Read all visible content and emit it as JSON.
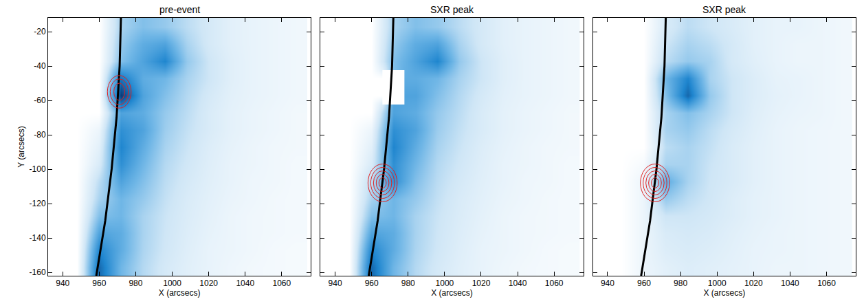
{
  "chart_data": [
    {
      "type": "heatmap",
      "title": "pre-event",
      "xlabel": "X (arcsecs)",
      "ylabel": "Y (arcsecs)",
      "xlim": [
        932,
        1076
      ],
      "ylim": [
        -162,
        -12
      ],
      "xticks": [
        940,
        960,
        980,
        1000,
        1020,
        1040,
        1060
      ],
      "yticks": [
        -160,
        -140,
        -120,
        -100,
        -80,
        -60,
        -40,
        -20
      ],
      "colors": [
        "#ffffff",
        "#cfe6f6",
        "#6fb6e6",
        "#1f86cf",
        "#0a3a78"
      ],
      "zlim": [
        0,
        1
      ],
      "x": [
        936,
        948,
        960,
        972,
        984,
        996,
        1008,
        1020,
        1032,
        1044,
        1056,
        1068
      ],
      "y": [
        -17,
        -27,
        -37,
        -47,
        -57,
        -67,
        -77,
        -87,
        -97,
        -107,
        -117,
        -127,
        -137,
        -147,
        -157
      ],
      "z": [
        [
          0,
          0,
          0,
          0.35,
          0.45,
          0.4,
          0.3,
          0.22,
          0.15,
          0.12,
          0.1,
          0.08
        ],
        [
          0,
          0,
          0,
          0.4,
          0.55,
          0.6,
          0.35,
          0.22,
          0.15,
          0.12,
          0.1,
          0.08
        ],
        [
          0,
          0,
          0,
          0.45,
          0.6,
          0.75,
          0.4,
          0.25,
          0.16,
          0.12,
          0.1,
          0.08
        ],
        [
          0,
          0,
          0,
          0.8,
          0.55,
          0.5,
          0.35,
          0.25,
          0.16,
          0.12,
          0.1,
          0.08
        ],
        [
          0,
          0,
          0,
          1.0,
          0.6,
          0.45,
          0.32,
          0.22,
          0.15,
          0.12,
          0.1,
          0.08
        ],
        [
          0,
          0,
          0,
          0.6,
          0.55,
          0.4,
          0.3,
          0.2,
          0.14,
          0.11,
          0.09,
          0.07
        ],
        [
          0,
          0,
          0.1,
          0.7,
          0.6,
          0.38,
          0.28,
          0.2,
          0.14,
          0.11,
          0.09,
          0.07
        ],
        [
          0,
          0,
          0.15,
          0.75,
          0.55,
          0.35,
          0.26,
          0.18,
          0.13,
          0.1,
          0.08,
          0.07
        ],
        [
          0,
          0,
          0.2,
          0.7,
          0.5,
          0.32,
          0.24,
          0.17,
          0.12,
          0.1,
          0.08,
          0.06
        ],
        [
          0,
          0,
          0.3,
          0.6,
          0.45,
          0.3,
          0.22,
          0.16,
          0.12,
          0.09,
          0.08,
          0.06
        ],
        [
          0,
          0,
          0.35,
          0.5,
          0.4,
          0.28,
          0.2,
          0.15,
          0.11,
          0.09,
          0.07,
          0.06
        ],
        [
          0,
          0,
          0.45,
          0.5,
          0.35,
          0.26,
          0.19,
          0.14,
          0.1,
          0.08,
          0.07,
          0.06
        ],
        [
          0,
          0,
          0.6,
          0.55,
          0.35,
          0.25,
          0.18,
          0.13,
          0.1,
          0.08,
          0.07,
          0.06
        ],
        [
          0,
          0,
          0.75,
          0.55,
          0.34,
          0.24,
          0.17,
          0.12,
          0.1,
          0.08,
          0.06,
          0.05
        ],
        [
          0,
          0,
          0.85,
          0.5,
          0.32,
          0.22,
          0.16,
          0.12,
          0.09,
          0.07,
          0.06,
          0.05
        ]
      ],
      "limb": {
        "color": "#000000",
        "x": [
          971.9,
          971.2,
          969.5,
          966.8,
          963.3,
          958.4
        ],
        "y": [
          -12,
          -40,
          -70,
          -100,
          -130,
          -162
        ]
      },
      "contours": {
        "color": "#e02020",
        "ellipses": [
          {
            "x": 971,
            "y": -55,
            "rx": [
              3,
              5,
              6.5
            ],
            "ry": [
              5,
              7.5,
              9.5
            ]
          }
        ]
      }
    },
    {
      "type": "heatmap",
      "title": "SXR peak",
      "xlabel": "X (arcsecs)",
      "tick_labels": "x",
      "xlim": [
        932,
        1076
      ],
      "ylim": [
        -162,
        -12
      ],
      "xticks": [
        940,
        960,
        980,
        1000,
        1020,
        1040,
        1060
      ],
      "yticks": [
        -160,
        -140,
        -120,
        -100,
        -80,
        -60,
        -40,
        -20
      ],
      "colors": [
        "#ffffff",
        "#cfe6f6",
        "#6fb6e6",
        "#1f86cf",
        "#0a3a78"
      ],
      "zlim": [
        0,
        1
      ],
      "x": [
        936,
        948,
        960,
        972,
        984,
        996,
        1008,
        1020,
        1032,
        1044,
        1056,
        1068
      ],
      "y": [
        -17,
        -27,
        -37,
        -47,
        -57,
        -67,
        -77,
        -87,
        -97,
        -107,
        -117,
        -127,
        -137,
        -147,
        -157
      ],
      "z": [
        [
          0,
          0,
          0,
          0.35,
          0.45,
          0.4,
          0.3,
          0.22,
          0.15,
          0.12,
          0.1,
          0.08
        ],
        [
          0,
          0,
          0,
          0.4,
          0.55,
          0.6,
          0.35,
          0.22,
          0.15,
          0.12,
          0.1,
          0.08
        ],
        [
          0,
          0,
          0,
          0.45,
          0.6,
          0.75,
          0.4,
          0.25,
          0.16,
          0.12,
          0.1,
          0.08
        ],
        [
          0,
          0,
          0,
          null,
          0.55,
          0.5,
          0.35,
          0.25,
          0.16,
          0.12,
          0.1,
          0.08
        ],
        [
          0,
          0,
          0,
          null,
          0.6,
          0.45,
          0.32,
          0.22,
          0.15,
          0.12,
          0.1,
          0.08
        ],
        [
          0,
          0,
          0,
          0.6,
          0.55,
          0.4,
          0.3,
          0.2,
          0.14,
          0.11,
          0.09,
          0.07
        ],
        [
          0,
          0,
          0.1,
          0.7,
          0.6,
          0.38,
          0.28,
          0.2,
          0.14,
          0.11,
          0.09,
          0.07
        ],
        [
          0,
          0,
          0.15,
          0.75,
          0.55,
          0.35,
          0.26,
          0.18,
          0.13,
          0.1,
          0.08,
          0.07
        ],
        [
          0,
          0,
          0.2,
          0.7,
          0.5,
          0.32,
          0.24,
          0.17,
          0.12,
          0.1,
          0.08,
          0.06
        ],
        [
          0,
          0,
          0.3,
          0.7,
          0.45,
          0.3,
          0.22,
          0.16,
          0.12,
          0.09,
          0.08,
          0.06
        ],
        [
          0,
          0,
          0.35,
          0.5,
          0.4,
          0.28,
          0.2,
          0.15,
          0.11,
          0.09,
          0.07,
          0.06
        ],
        [
          0,
          0,
          0.45,
          0.5,
          0.35,
          0.26,
          0.19,
          0.14,
          0.1,
          0.08,
          0.07,
          0.06
        ],
        [
          0,
          0,
          0.6,
          0.55,
          0.35,
          0.25,
          0.18,
          0.13,
          0.1,
          0.08,
          0.07,
          0.06
        ],
        [
          0,
          0,
          0.75,
          0.55,
          0.34,
          0.24,
          0.17,
          0.12,
          0.1,
          0.08,
          0.06,
          0.05
        ],
        [
          0,
          0,
          0.85,
          0.5,
          0.32,
          0.22,
          0.16,
          0.12,
          0.09,
          0.07,
          0.06,
          0.05
        ]
      ],
      "limb": {
        "color": "#000000",
        "x": [
          971.9,
          971.2,
          969.5,
          966.8,
          963.3,
          958.4
        ],
        "y": [
          -12,
          -40,
          -70,
          -100,
          -130,
          -162
        ]
      },
      "contours": {
        "color": "#e02020",
        "ellipses": [
          {
            "x": 966,
            "y": -108,
            "rx": [
              2,
              3.5,
              5,
              6.5,
              8
            ],
            "ry": [
              3,
              5,
              7,
              9,
              11
            ]
          }
        ]
      }
    },
    {
      "type": "heatmap",
      "title": "SXR peak",
      "xlabel": "X (arcsecs)",
      "tick_labels": "x",
      "xlim": [
        932,
        1076
      ],
      "ylim": [
        -162,
        -12
      ],
      "xticks": [
        940,
        960,
        980,
        1000,
        1020,
        1040,
        1060
      ],
      "yticks": [
        -160,
        -140,
        -120,
        -100,
        -80,
        -60,
        -40,
        -20
      ],
      "colors": [
        "#ffffff",
        "#cfe6f6",
        "#6fb6e6",
        "#1f86cf",
        "#0a3a78"
      ],
      "zlim": [
        0,
        1
      ],
      "x": [
        936,
        948,
        960,
        972,
        984,
        996,
        1008,
        1020,
        1032,
        1044,
        1056,
        1068
      ],
      "y": [
        -17,
        -27,
        -37,
        -47,
        -57,
        -67,
        -77,
        -87,
        -97,
        -107,
        -117,
        -127,
        -137,
        -147,
        -157
      ],
      "z": [
        [
          0,
          0,
          0,
          0.2,
          0.3,
          0.25,
          0.2,
          0.15,
          0.12,
          0.12,
          0.1,
          0.08
        ],
        [
          0,
          0,
          0,
          0.25,
          0.35,
          0.3,
          0.22,
          0.15,
          0.12,
          0.1,
          0.1,
          0.08
        ],
        [
          0,
          0,
          0,
          0.3,
          0.4,
          0.35,
          0.22,
          0.16,
          0.12,
          0.1,
          0.1,
          0.08
        ],
        [
          0,
          0,
          0,
          0.5,
          0.75,
          0.35,
          0.25,
          0.18,
          0.13,
          0.12,
          0.1,
          0.08
        ],
        [
          0,
          0,
          0,
          0.45,
          0.85,
          0.4,
          0.25,
          0.18,
          0.14,
          0.12,
          0.1,
          0.08
        ],
        [
          0,
          0,
          0,
          0.35,
          0.45,
          0.35,
          0.25,
          0.17,
          0.13,
          0.11,
          0.1,
          0.08
        ],
        [
          0,
          0,
          0,
          0.35,
          0.4,
          0.3,
          0.22,
          0.16,
          0.12,
          0.1,
          0.09,
          0.08
        ],
        [
          0,
          0,
          0,
          0.3,
          0.35,
          0.28,
          0.2,
          0.15,
          0.12,
          0.1,
          0.09,
          0.08
        ],
        [
          0,
          0,
          0.05,
          0.35,
          0.35,
          0.26,
          0.2,
          0.15,
          0.12,
          0.1,
          0.09,
          0.08
        ],
        [
          0,
          0,
          0.1,
          0.55,
          0.35,
          0.25,
          0.2,
          0.15,
          0.12,
          0.1,
          0.09,
          0.08
        ],
        [
          0,
          0,
          0.1,
          0.4,
          0.3,
          0.24,
          0.18,
          0.14,
          0.12,
          0.1,
          0.09,
          0.08
        ],
        [
          0,
          0,
          0.1,
          0.25,
          0.25,
          0.22,
          0.18,
          0.14,
          0.12,
          0.1,
          0.09,
          0.08
        ],
        [
          0,
          0,
          0.1,
          0.2,
          0.22,
          0.2,
          0.16,
          0.13,
          0.11,
          0.1,
          0.09,
          0.08
        ],
        [
          0,
          0,
          0.1,
          0.18,
          0.2,
          0.18,
          0.15,
          0.12,
          0.11,
          0.1,
          0.09,
          0.08
        ],
        [
          0,
          0,
          0.1,
          0.15,
          0.18,
          0.16,
          0.14,
          0.12,
          0.1,
          0.1,
          0.09,
          0.08
        ]
      ],
      "limb": {
        "color": "#000000",
        "x": [
          971.9,
          971.2,
          969.5,
          966.8,
          963.3,
          958.4
        ],
        "y": [
          -12,
          -40,
          -70,
          -100,
          -130,
          -162
        ]
      },
      "contours": {
        "color": "#e02020",
        "ellipses": [
          {
            "x": 966,
            "y": -108,
            "rx": [
              2,
              3.5,
              5,
              6.5,
              8
            ],
            "ry": [
              3,
              5,
              7,
              9,
              11
            ]
          }
        ]
      }
    }
  ]
}
